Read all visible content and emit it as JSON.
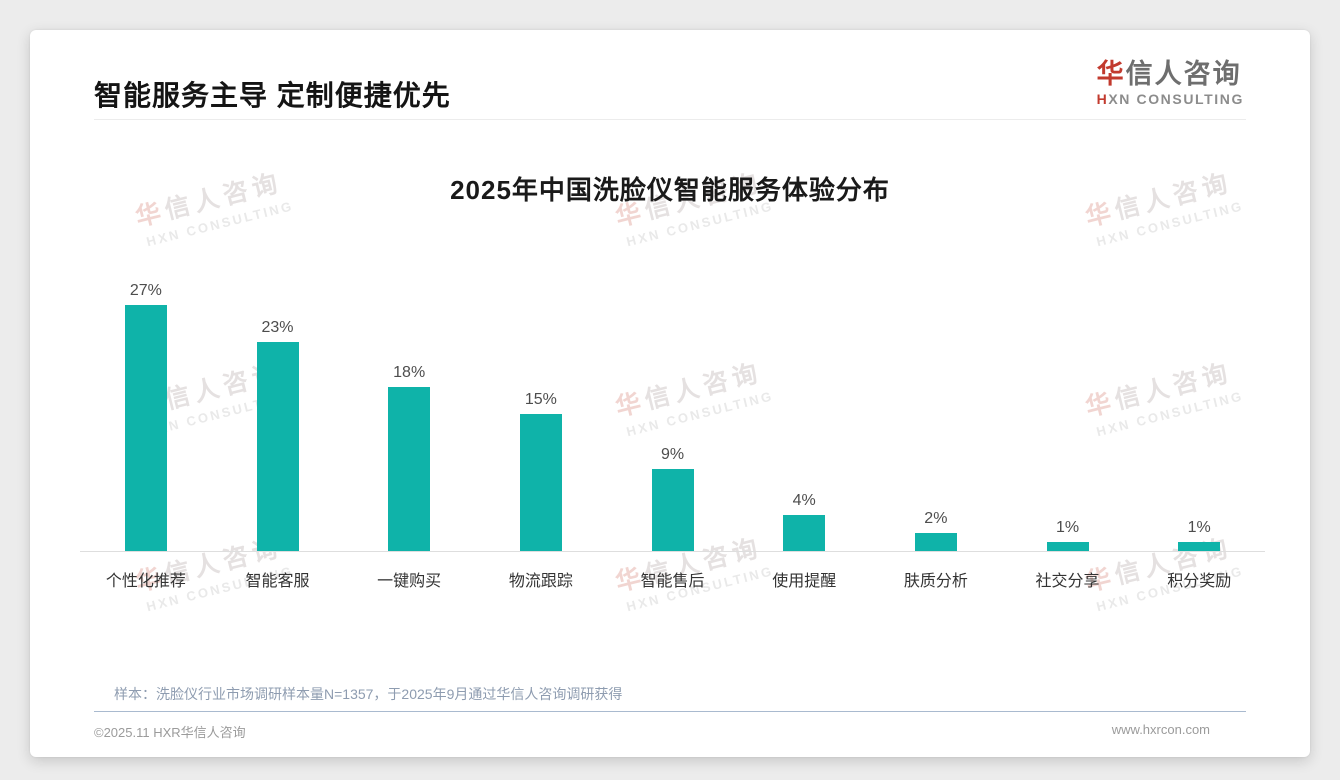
{
  "header": {
    "title": "智能服务主导 定制便捷优先",
    "logo": {
      "cn_first": "华",
      "cn_rest": "信人咨询",
      "en_first": "H",
      "en_rest": "XN CONSULTING",
      "accent_color": "#c23a2e"
    }
  },
  "chart_data": {
    "type": "bar",
    "title": "2025年中国洗脸仪智能服务体验分布",
    "categories": [
      "个性化推荐",
      "智能客服",
      "一键购买",
      "物流跟踪",
      "智能售后",
      "使用提醒",
      "肤质分析",
      "社交分享",
      "积分奖励"
    ],
    "values": [
      27,
      23,
      18,
      15,
      9,
      4,
      2,
      1,
      1
    ],
    "unit": "%",
    "bar_color": "#0fb3a9",
    "xlabel": "",
    "ylabel": "",
    "ylim": [
      0,
      30
    ],
    "y_axis_visible": false,
    "grid": false,
    "legend": null,
    "value_labels_shown": true
  },
  "watermark": {
    "cn_first": "华",
    "cn_rest": "信人咨询",
    "en": "HXN CONSULTING"
  },
  "note": {
    "text": "样本：洗脸仪行业市场调研样本量N=1357，于2025年9月通过华信人咨询调研获得"
  },
  "footer": {
    "copyright": "©2025.11 HXR华信人咨询",
    "website": "www.hxrcon.com"
  }
}
